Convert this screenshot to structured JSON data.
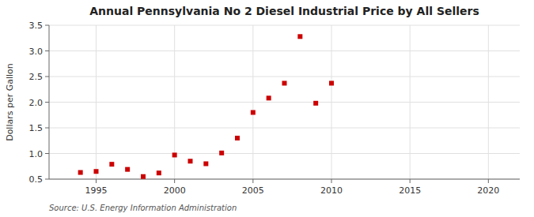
{
  "chart_data": {
    "type": "scatter",
    "title": "Annual Pennsylvania No 2 Diesel Industrial Price by All Sellers",
    "ylabel": "Dollars per Gallon",
    "annotations": [
      "Source: U.S. Energy Information Administration"
    ],
    "x": [
      1994,
      1995,
      1996,
      1997,
      1998,
      1999,
      2000,
      2001,
      2002,
      2003,
      2004,
      2005,
      2006,
      2007,
      2008,
      2009,
      2010
    ],
    "values": [
      0.63,
      0.65,
      0.79,
      0.69,
      0.55,
      0.62,
      0.97,
      0.85,
      0.8,
      1.01,
      1.3,
      1.8,
      2.08,
      2.37,
      3.28,
      1.98,
      2.37
    ],
    "color": "#cc0000",
    "marker": "square",
    "xlim": [
      1992,
      2022
    ],
    "ylim": [
      0.5,
      3.5
    ],
    "xticks": [
      1995,
      2000,
      2005,
      2010,
      2015,
      2020
    ],
    "yticks": [
      0.5,
      {
        "value": 1.0,
        "label": "1.0"
      },
      1.5,
      {
        "value": 2.0,
        "label": "2.0"
      },
      2.5,
      {
        "value": 3.0,
        "label": "3.0"
      },
      3.5
    ],
    "grid": true
  }
}
